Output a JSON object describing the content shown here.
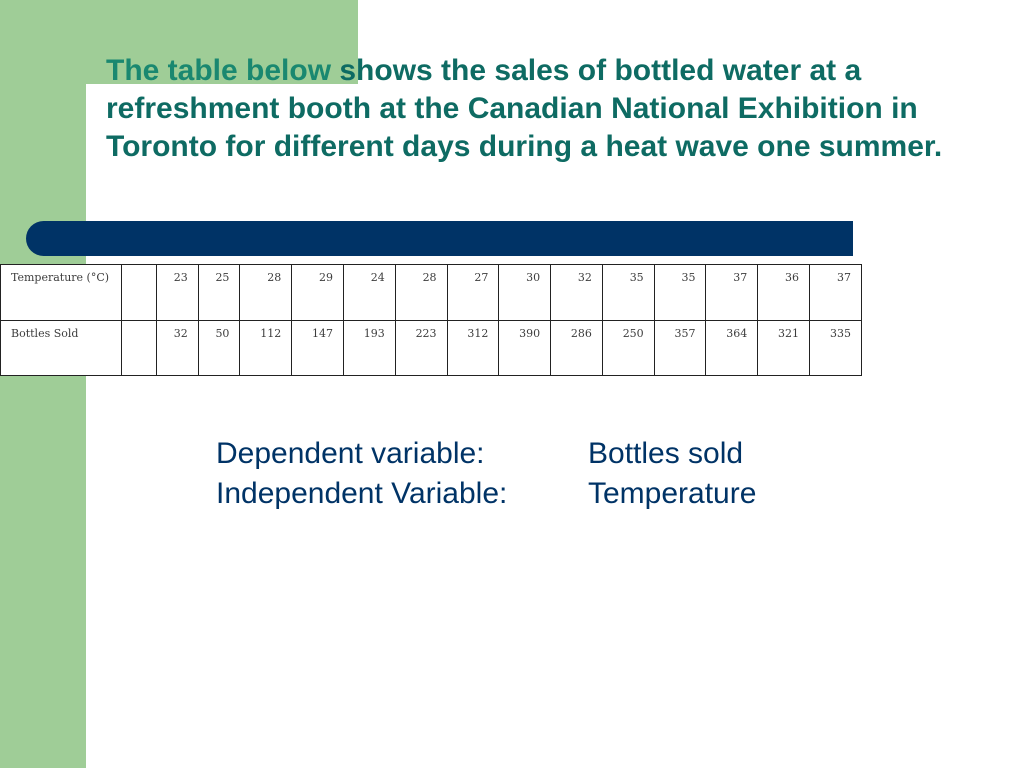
{
  "slide": {
    "title_emphasis": "The table below",
    "title_rest": " shows the sales of bottled water at a refreshment booth at the Canadian National Exhibition in Toronto for different days during a heat wave one summer."
  },
  "table": {
    "rows": [
      {
        "label": "Temperature (°C)",
        "values": [
          "23",
          "25",
          "28",
          "29",
          "24",
          "28",
          "27",
          "30",
          "32",
          "35",
          "35",
          "37",
          "36",
          "37"
        ]
      },
      {
        "label": "Bottles Sold",
        "values": [
          "32",
          "50",
          "112",
          "147",
          "193",
          "223",
          "312",
          "390",
          "286",
          "250",
          "357",
          "364",
          "321",
          "335"
        ]
      }
    ]
  },
  "variables": {
    "dependent_label": "Dependent variable:",
    "dependent_value": "Bottles sold",
    "independent_label": "Independent Variable:",
    "independent_value": "Temperature"
  },
  "colors": {
    "side_green": "#9fcd97",
    "title_teal": "#0e6b63",
    "bar_navy": "#003366"
  }
}
